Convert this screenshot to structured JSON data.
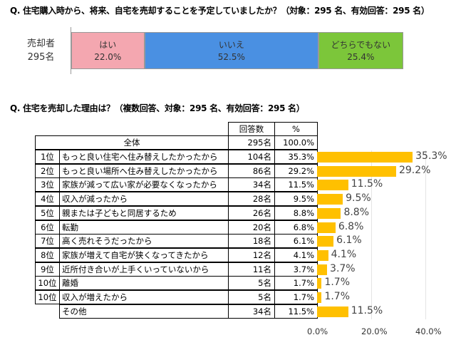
{
  "q1": {
    "title": "Q.  住宅購入時から、将来、自宅を売却することを予定していましたか？（対象：295 名、有効回答：295 名）",
    "row_label": [
      "売却者",
      "295名"
    ]
  },
  "q2": {
    "title": "Q.  住宅を売却した理由は？（複数回答、対象：295 名、有効回答：295 名）",
    "col_count": "回答数",
    "col_pct": "%",
    "total": {
      "label": "全体",
      "count": "295名",
      "pct": "100.0%"
    }
  },
  "chart_data": [
    {
      "type": "bar",
      "orientation": "horizontal",
      "stacked": true,
      "categories": [
        "売却者 295名"
      ],
      "series": [
        {
          "name": "はい",
          "values": [
            22.0
          ],
          "label": "22.0%",
          "color": "#f4a7b0"
        },
        {
          "name": "いいえ",
          "values": [
            52.5
          ],
          "label": "52.5%",
          "color": "#4a90e2"
        },
        {
          "name": "どちらでもない",
          "values": [
            25.4
          ],
          "label": "25.4%",
          "color": "#7cc63a"
        }
      ]
    },
    {
      "type": "bar",
      "orientation": "horizontal",
      "xlim": [
        0,
        40
      ],
      "xticks": [
        "0.0%",
        "20.0%",
        "40.0%"
      ],
      "grid": true,
      "color": "#ffc000",
      "rows": [
        {
          "rank": "1位",
          "label": "もっと良い住宅へ住み替えしたかったから",
          "count": "104名",
          "pct": "35.3%",
          "value": 35.3
        },
        {
          "rank": "2位",
          "label": "もっと良い場所へ住み替えしたかったから",
          "count": "86名",
          "pct": "29.2%",
          "value": 29.2
        },
        {
          "rank": "3位",
          "label": "家族が減って広い家が必要なくなったから",
          "count": "34名",
          "pct": "11.5%",
          "value": 11.5
        },
        {
          "rank": "4位",
          "label": "収入が減ったから",
          "count": "28名",
          "pct": "9.5%",
          "value": 9.5
        },
        {
          "rank": "5位",
          "label": "親または子どもと同居するため",
          "count": "26名",
          "pct": "8.8%",
          "value": 8.8
        },
        {
          "rank": "6位",
          "label": "転勤",
          "count": "20名",
          "pct": "6.8%",
          "value": 6.8
        },
        {
          "rank": "7位",
          "label": "高く売れそうだったから",
          "count": "18名",
          "pct": "6.1%",
          "value": 6.1
        },
        {
          "rank": "8位",
          "label": "家族が増えて自宅が狭くなってきたから",
          "count": "12名",
          "pct": "4.1%",
          "value": 4.1
        },
        {
          "rank": "9位",
          "label": "近所付き合いが上手くいっていないから",
          "count": "11名",
          "pct": "3.7%",
          "value": 3.7
        },
        {
          "rank": "10位",
          "label": "離婚",
          "count": "5名",
          "pct": "1.7%",
          "value": 1.7
        },
        {
          "rank": "10位",
          "label": "収入が増えたから",
          "count": "5名",
          "pct": "1.7%",
          "value": 1.7
        },
        {
          "rank": "",
          "label": "その他",
          "count": "34名",
          "pct": "11.5%",
          "value": 11.5
        }
      ]
    }
  ]
}
